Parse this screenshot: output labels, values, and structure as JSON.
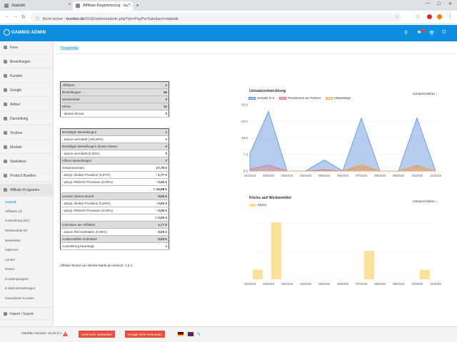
{
  "browser": {
    "tabs": [
      {
        "label": "Statistik"
      },
      {
        "label": "Affiliate-Registrierung - bu…"
      }
    ],
    "security_label": "Nicht sicher",
    "url_host": "bumbio.de",
    "url_path": "/3100/admin/admin.php?do=PayPerSale&act=statistik"
  },
  "header": {
    "logo": "GAMBIO ADMIN",
    "colors": {
      "brand": "#0d8ee0"
    }
  },
  "sidebar": {
    "items": [
      {
        "label": "Favs",
        "icon": "heart-icon"
      },
      {
        "label": "Bestellungen",
        "icon": "cart-icon"
      },
      {
        "label": "Kunden",
        "icon": "user-icon"
      },
      {
        "label": "Google",
        "icon": "google-icon"
      },
      {
        "label": "Artikel",
        "icon": "tag-icon"
      },
      {
        "label": "Darstellung",
        "icon": "brush-icon"
      },
      {
        "label": "Toolbox",
        "icon": "toolbox-icon"
      },
      {
        "label": "Module",
        "icon": "puzzle-icon"
      },
      {
        "label": "Statistiken",
        "icon": "chart-icon"
      },
      {
        "label": "Product Bundles",
        "icon": "bundle-icon"
      },
      {
        "label": "Affiliate-Programm",
        "icon": "affiliate-icon"
      }
    ],
    "subitems": [
      {
        "label": "Statistik"
      },
      {
        "label": "Affiliates (2)"
      },
      {
        "label": "Auszahlung (8/1)"
      },
      {
        "label": "Werbemittel (0)"
      },
      {
        "label": "Newsletter"
      },
      {
        "label": "Optionen"
      },
      {
        "label": "Länder"
      },
      {
        "label": "Reiser"
      },
      {
        "label": "Kundengruppen"
      },
      {
        "label": "E-Mail-Einstellungen"
      },
      {
        "label": "Geworbene Kunden"
      }
    ],
    "bottom_item": {
      "label": "Import / Export"
    }
  },
  "main": {
    "title": "Statistik",
    "table1": [
      {
        "label": "Affiliates",
        "value": "2",
        "g": true
      },
      {
        "label": "Bestellungen",
        "value": "16",
        "g": true
      },
      {
        "label": "Werbemittel",
        "value": "0",
        "g": true
      },
      {
        "label": "Klicks",
        "value": "11",
        "g": true
      },
      {
        "label": "- dieses Monat",
        "value": "0",
        "g": false
      }
    ],
    "table2": [
      {
        "label": "Bestätigte Bestellungen",
        "value": "1",
        "g": true
      },
      {
        "label": "- davon vermittelt (100,00%)",
        "value": "1",
        "g": false
      },
      {
        "label": "Bestätigte Bestellungen dieses Monat",
        "value": "0",
        "g": true
      },
      {
        "label": "- davon vermittelt (0,00%)",
        "value": "0",
        "g": false
      },
      {
        "label": "Offene Bestellungen",
        "value": "7",
        "g": true
      },
      {
        "label": "Gesamtumsatz",
        "value": "17,75 €",
        "g": false
      },
      {
        "label": "- abzgl. direkte Provision (9,97%)",
        "value": "- 1,77 €",
        "g": false
      },
      {
        "label": "- abzgl. Referrer-Provision (0,00%)",
        "value": "- 0,00 €",
        "g": false
      },
      {
        "label": "",
        "value": "= 15,98 €",
        "g": false
      },
      {
        "label": "Umsatz dieses Monat",
        "value": "0,00 €",
        "g": true
      },
      {
        "label": "- abzgl. direkte Provision (0,00%)",
        "value": "- 0,00 €",
        "g": false
      },
      {
        "label": "- abzgl. Referrer-Provision (0,00%)",
        "value": "- 0,00 €",
        "g": false
      },
      {
        "label": "",
        "value": "= 0,00 €",
        "g": false
      },
      {
        "label": "Guthaben der Affiliates",
        "value": "1,77 €",
        "g": true
      },
      {
        "label": "- davon Ref-Guthaben (0,00%)",
        "value": "0,00 €",
        "g": false
      },
      {
        "label": "Ausbezahltes Guthaben",
        "value": "0,00 €",
        "g": true
      },
      {
        "label": "Auszahlung beantragt",
        "value": "1",
        "g": false
      }
    ],
    "version": "Affiliate-Modul von Werbe-Markt.de Version: 1.3.4"
  },
  "chart_data": [
    {
      "type": "area",
      "title": "Umsatzentwicklung",
      "filter": "Gesamt bisher ↓",
      "categories": [
        "01/2019",
        "02/2019",
        "03/2019",
        "04/2019",
        "05/2019",
        "06/2019",
        "07/2019",
        "08/2019",
        "09/2019",
        "10/2019",
        "11/2019"
      ],
      "ylim": [
        0,
        30
      ],
      "yticks": [
        "30.0",
        "22.5",
        "15.0",
        "7.5",
        "0.0"
      ],
      "series": [
        {
          "name": "Umsatz in €",
          "color": "#5b8fd9",
          "values": [
            8,
            27,
            0,
            0,
            5,
            0,
            24,
            0,
            0,
            24,
            0
          ]
        },
        {
          "name": "Provisionen an Partner",
          "color": "#e06c75",
          "values": [
            0.8,
            2.7,
            0,
            0,
            0.5,
            0,
            2.4,
            0,
            0,
            2.4,
            0
          ]
        },
        {
          "name": "Unbestätigt",
          "color": "#f0b35a",
          "values": [
            0,
            0,
            0,
            0,
            0,
            0,
            3,
            0,
            0,
            2.2,
            0
          ]
        }
      ]
    },
    {
      "type": "bar",
      "title": "Klicks auf Werbemittel",
      "filter": "Gesamt bisher ↓",
      "categories": [
        "01/2019",
        "02/2019",
        "03/2019",
        "04/2019",
        "05/2019",
        "06/2019",
        "07/2019",
        "08/2019",
        "09/2019",
        "10/2019",
        "11/2019"
      ],
      "ylim": [
        0,
        7
      ],
      "series": [
        {
          "name": "Klicks",
          "color": "#f9e19a",
          "values": [
            1,
            6,
            0,
            0,
            0,
            0,
            3,
            0,
            0,
            1,
            0
          ]
        }
      ]
    }
  ],
  "footer": {
    "version": "Gambio Version: v3.10.0.1",
    "btn1": "HGB nicht verbunden",
    "btn2": "Google nicht verbunden"
  }
}
